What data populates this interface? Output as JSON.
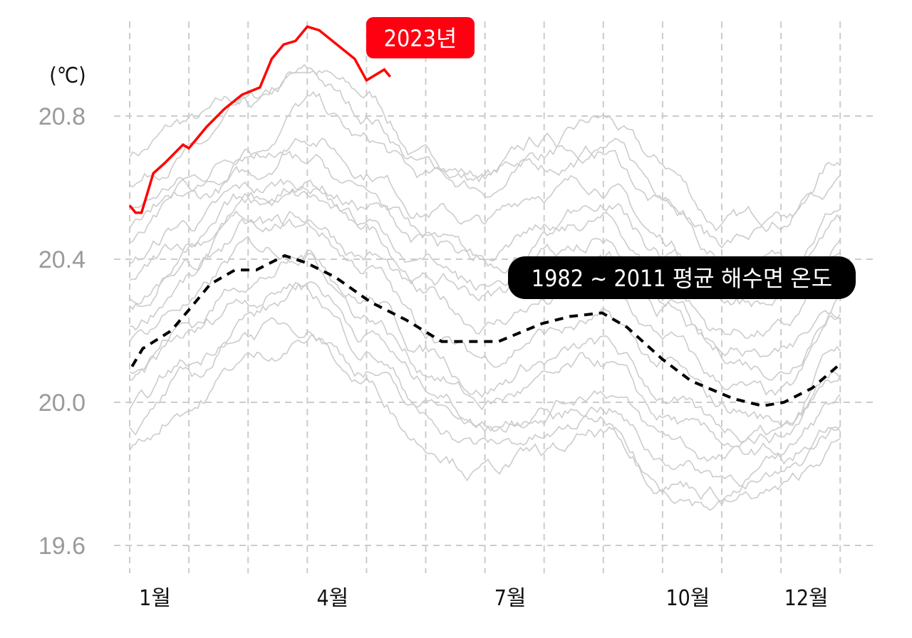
{
  "chart_data": {
    "type": "line",
    "ylabel": "(℃)",
    "ylim": [
      19.55,
      21.1
    ],
    "xlim": [
      1,
      13
    ],
    "grid": true,
    "yticks": [
      19.6,
      20.0,
      20.4,
      20.8
    ],
    "ytick_labels": [
      "19.6",
      "20.0",
      "20.4",
      "20.8"
    ],
    "xticks": [
      1.5,
      4.5,
      7.5,
      10.5,
      12.5
    ],
    "xtick_labels": [
      "1월",
      "4월",
      "7월",
      "10월",
      "12월"
    ],
    "colors": {
      "highlight": "#ff0000",
      "mean": "#000000",
      "years": "#cccccc",
      "grid": "#cccccc"
    },
    "annotations": {
      "highlight_label": "2023년",
      "mean_label": "1982 ~ 2011 평균 해수면 온도"
    },
    "highlight_series": {
      "name": "2023년",
      "points": [
        [
          1.0,
          20.55
        ],
        [
          1.1,
          20.53
        ],
        [
          1.2,
          20.53
        ],
        [
          1.4,
          20.64
        ],
        [
          1.6,
          20.67
        ],
        [
          1.9,
          20.72
        ],
        [
          2.0,
          20.71
        ],
        [
          2.3,
          20.77
        ],
        [
          2.6,
          20.82
        ],
        [
          2.9,
          20.86
        ],
        [
          3.2,
          20.88
        ],
        [
          3.4,
          20.96
        ],
        [
          3.6,
          21.0
        ],
        [
          3.8,
          21.01
        ],
        [
          4.0,
          21.05
        ],
        [
          4.2,
          21.04
        ],
        [
          4.5,
          21.0
        ],
        [
          4.8,
          20.96
        ],
        [
          5.0,
          20.9
        ],
        [
          5.1,
          20.91
        ],
        [
          5.3,
          20.93
        ],
        [
          5.4,
          20.91
        ]
      ]
    },
    "mean_series": {
      "name": "1982 ~ 2011 평균 해수면 온도",
      "points": [
        [
          1.04,
          20.1
        ],
        [
          1.22,
          20.15
        ],
        [
          1.7,
          20.2
        ],
        [
          2.06,
          20.27
        ],
        [
          2.36,
          20.33
        ],
        [
          2.78,
          20.37
        ],
        [
          3.14,
          20.37
        ],
        [
          3.62,
          20.41
        ],
        [
          3.98,
          20.39
        ],
        [
          4.47,
          20.35
        ],
        [
          5.07,
          20.28
        ],
        [
          5.67,
          20.23
        ],
        [
          6.27,
          20.17
        ],
        [
          7.23,
          20.17
        ],
        [
          7.96,
          20.22
        ],
        [
          8.44,
          20.24
        ],
        [
          8.98,
          20.25
        ],
        [
          9.4,
          20.21
        ],
        [
          10.0,
          20.12
        ],
        [
          10.48,
          20.06
        ],
        [
          11.2,
          20.01
        ],
        [
          11.69,
          19.99
        ],
        [
          12.05,
          20.0
        ],
        [
          12.53,
          20.04
        ],
        [
          12.95,
          20.1
        ]
      ]
    },
    "other_years_monthly": [
      [
        20.7,
        20.78,
        20.84,
        20.94,
        20.85,
        20.68,
        20.64,
        20.7,
        20.78,
        20.65,
        20.5,
        20.52,
        20.68
      ],
      [
        20.62,
        20.7,
        20.8,
        20.9,
        20.8,
        20.66,
        20.62,
        20.72,
        20.72,
        20.6,
        20.46,
        20.48,
        20.6
      ],
      [
        20.55,
        20.62,
        20.72,
        20.84,
        20.72,
        20.62,
        20.6,
        20.66,
        20.7,
        20.55,
        20.4,
        20.4,
        20.55
      ],
      [
        20.45,
        20.55,
        20.62,
        20.76,
        20.66,
        20.55,
        20.5,
        20.6,
        20.62,
        20.45,
        20.3,
        20.28,
        20.45
      ],
      [
        20.4,
        20.5,
        20.58,
        20.62,
        20.55,
        20.45,
        20.38,
        20.45,
        20.5,
        20.35,
        20.2,
        20.2,
        20.38
      ],
      [
        20.35,
        20.45,
        20.55,
        20.56,
        20.48,
        20.35,
        20.3,
        20.35,
        20.4,
        20.25,
        20.12,
        20.1,
        20.3
      ],
      [
        20.3,
        20.4,
        20.5,
        20.52,
        20.42,
        20.28,
        20.22,
        20.28,
        20.3,
        20.18,
        20.05,
        20.0,
        20.22
      ],
      [
        20.22,
        20.35,
        20.48,
        20.48,
        20.38,
        20.2,
        20.12,
        20.2,
        20.22,
        20.1,
        19.98,
        19.95,
        20.15
      ],
      [
        20.18,
        20.28,
        20.42,
        20.44,
        20.3,
        20.15,
        20.05,
        20.12,
        20.15,
        20.02,
        19.92,
        19.92,
        20.1
      ],
      [
        20.1,
        20.22,
        20.35,
        20.4,
        20.25,
        20.1,
        20.0,
        20.05,
        20.1,
        19.95,
        19.88,
        19.9,
        20.05
      ],
      [
        20.05,
        20.18,
        20.3,
        20.35,
        20.2,
        20.05,
        19.95,
        20.0,
        20.05,
        19.9,
        19.84,
        19.86,
        20.0
      ],
      [
        19.98,
        20.1,
        20.25,
        20.3,
        20.15,
        20.0,
        19.92,
        19.95,
        20.0,
        19.85,
        19.8,
        19.82,
        19.96
      ],
      [
        19.92,
        20.05,
        20.2,
        20.22,
        20.1,
        19.95,
        19.88,
        19.9,
        19.95,
        19.8,
        19.76,
        19.78,
        19.92
      ],
      [
        19.88,
        20.0,
        20.12,
        20.18,
        20.05,
        19.9,
        19.82,
        19.85,
        19.9,
        19.76,
        19.72,
        19.75,
        19.88
      ],
      [
        20.5,
        20.6,
        20.68,
        20.66,
        20.58,
        20.45,
        20.4,
        20.48,
        20.58,
        20.42,
        20.3,
        20.35,
        20.5
      ],
      [
        20.28,
        20.42,
        20.55,
        20.62,
        20.5,
        20.4,
        20.32,
        20.4,
        20.45,
        20.3,
        20.15,
        20.12,
        20.26
      ]
    ]
  }
}
